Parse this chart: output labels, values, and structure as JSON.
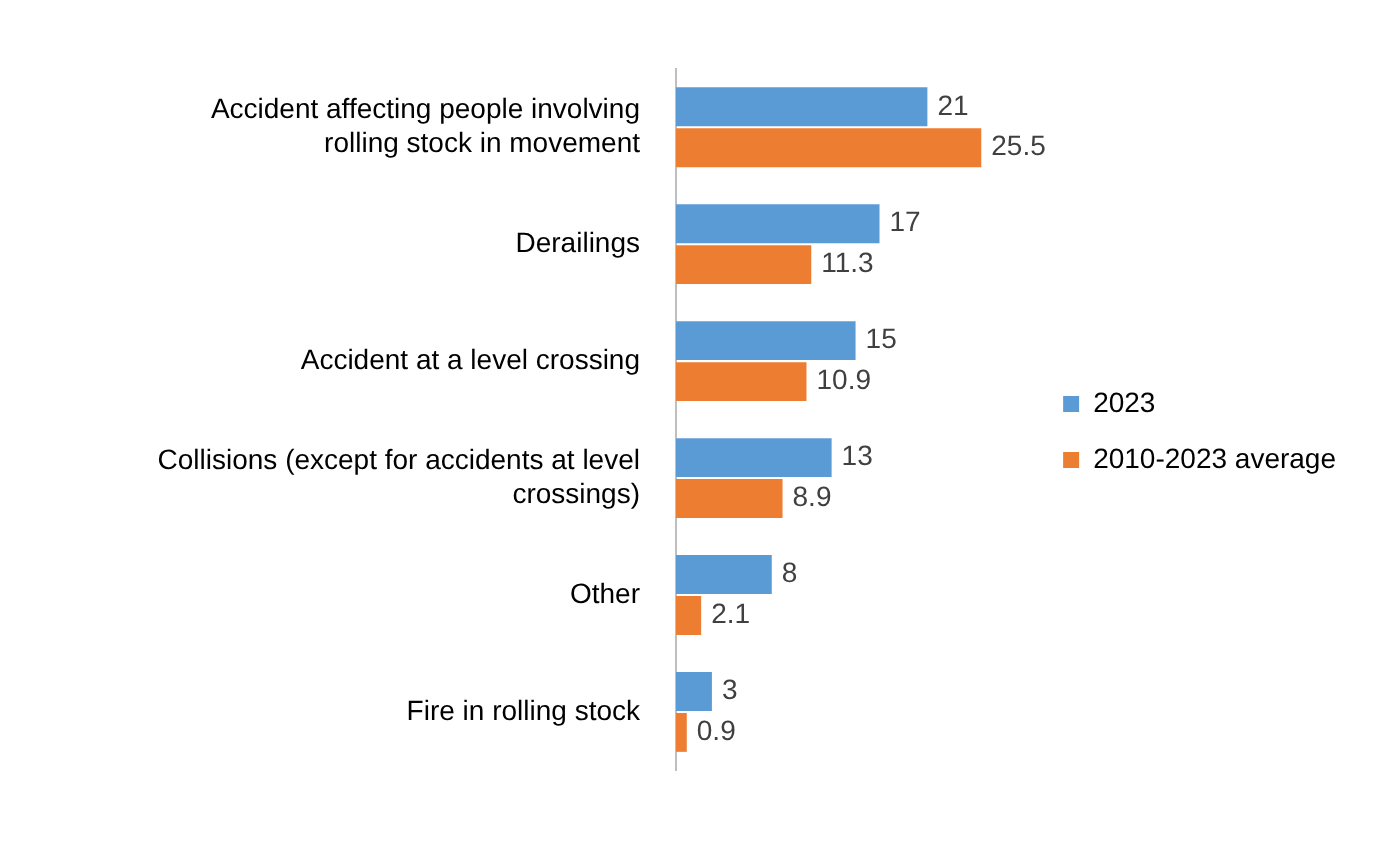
{
  "chart_data": {
    "type": "bar",
    "orientation": "horizontal",
    "categories": [
      "Accident affecting people involving rolling stock in movement",
      "Derailings",
      "Accident at a level crossing",
      "Collisions (except for accidents at level crossings)",
      "Other",
      "Fire in rolling stock"
    ],
    "series": [
      {
        "name": "2023",
        "color": "#5b9bd5",
        "values": [
          21,
          17,
          15,
          13,
          8,
          3
        ]
      },
      {
        "name": "2010-2023 average",
        "color": "#ed7d31",
        "values": [
          25.5,
          11.3,
          10.9,
          8.9,
          2.1,
          0.9
        ]
      }
    ],
    "data_labels": true,
    "legend": "right"
  }
}
